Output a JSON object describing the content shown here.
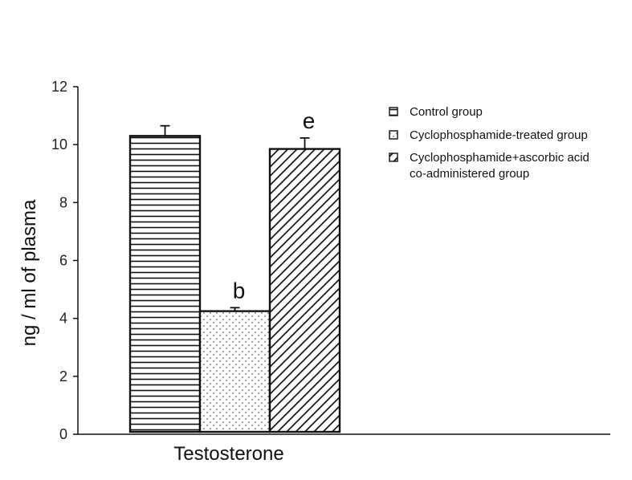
{
  "chart_data": {
    "type": "bar",
    "ylabel": "ng / ml of plasma",
    "ylim": [
      0,
      12
    ],
    "yticks": [
      0,
      2,
      4,
      6,
      8,
      10,
      12
    ],
    "categories": [
      "Testosterone"
    ],
    "series": [
      {
        "name": "Control group",
        "values": [
          10.3
        ],
        "error": [
          0.35
        ],
        "annotation": "",
        "pattern": "horizontal-lines"
      },
      {
        "name": "Cyclophosphamide-treated group",
        "values": [
          4.25
        ],
        "error": [
          0.12
        ],
        "annotation": "b",
        "pattern": "dots"
      },
      {
        "name": "Cyclophosphamide+ascorbic acid co-administered group",
        "values": [
          9.85
        ],
        "error": [
          0.38
        ],
        "annotation": "e",
        "pattern": "diagonal-lines"
      }
    ],
    "legend": {
      "placement": "top-right",
      "entries": [
        {
          "lines": [
            "Control group"
          ]
        },
        {
          "lines": [
            "Cyclophosphamide-treated group"
          ]
        },
        {
          "lines": [
            "Cyclophosphamide+ascorbic acid",
            "co-administered group"
          ]
        }
      ]
    },
    "grid": false
  }
}
